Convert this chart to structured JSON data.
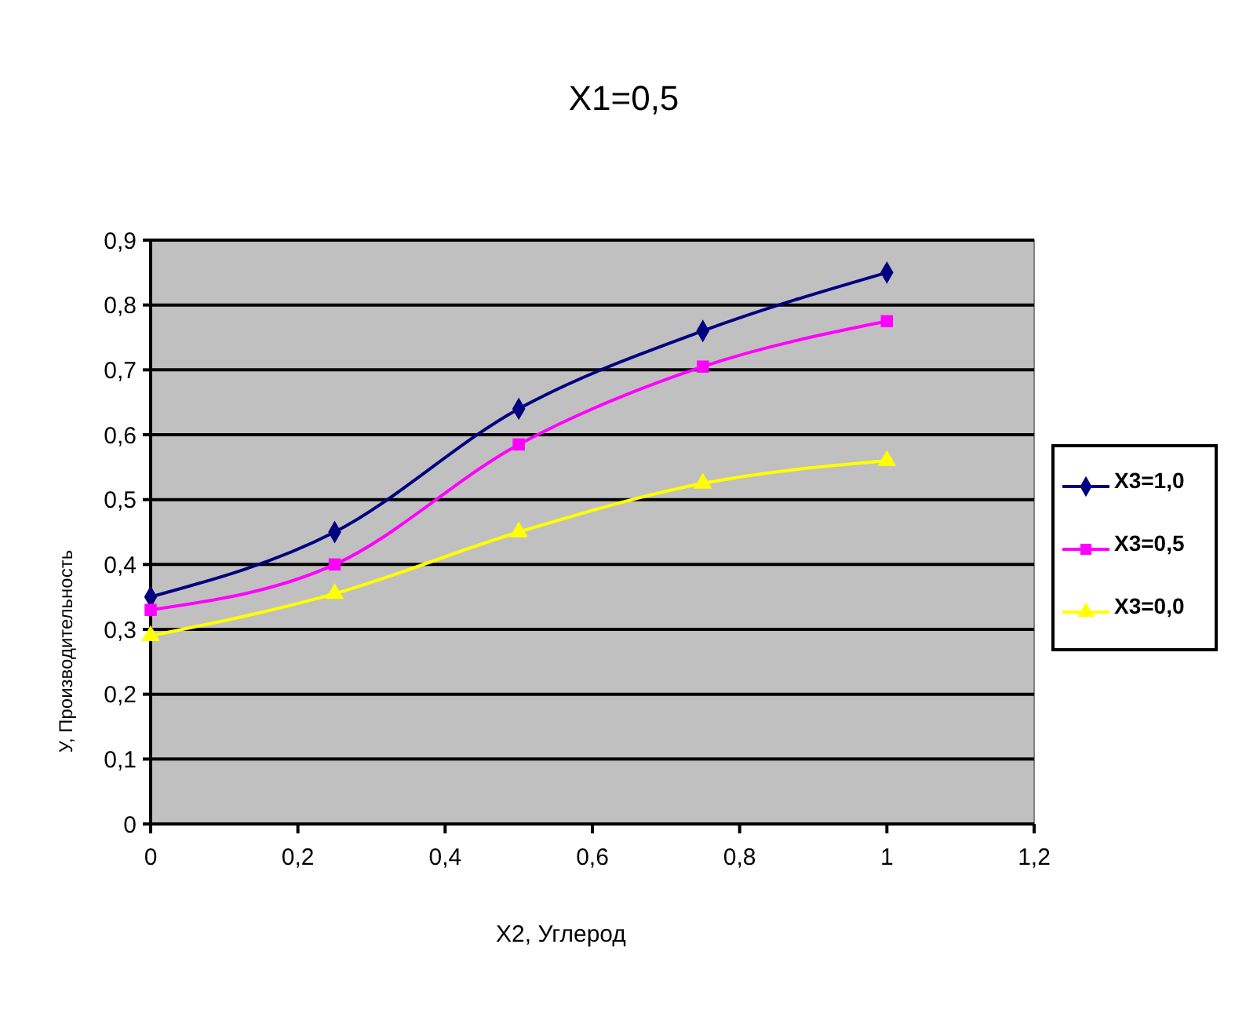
{
  "chart_data": {
    "type": "line",
    "title": "X1=0,5",
    "xlabel": "X2, Углерод",
    "ylabel": "У, Производительность",
    "x": [
      0,
      0.25,
      0.5,
      0.75,
      1
    ],
    "series": [
      {
        "name": "X3=1,0",
        "color": "#000080",
        "values": [
          0.35,
          0.45,
          0.64,
          0.76,
          0.85
        ],
        "marker": "diamond"
      },
      {
        "name": "X3=0,5",
        "color": "#ff00ff",
        "values": [
          0.33,
          0.4,
          0.585,
          0.705,
          0.775
        ],
        "marker": "square"
      },
      {
        "name": "X3=0,0",
        "color": "#ffff00",
        "values": [
          0.29,
          0.355,
          0.45,
          0.525,
          0.56
        ],
        "marker": "triangle"
      }
    ],
    "xlim": [
      0,
      1.2
    ],
    "xticks": [
      {
        "value": 0,
        "label": "0"
      },
      {
        "value": 0.2,
        "label": "0,2"
      },
      {
        "value": 0.4,
        "label": "0,4"
      },
      {
        "value": 0.6,
        "label": "0,6"
      },
      {
        "value": 0.8,
        "label": "0,8"
      },
      {
        "value": 1,
        "label": "1"
      },
      {
        "value": 1.2,
        "label": "1,2"
      }
    ],
    "ylim": [
      0,
      0.9
    ],
    "yticks": [
      {
        "value": 0,
        "label": "0"
      },
      {
        "value": 0.1,
        "label": "0,1"
      },
      {
        "value": 0.2,
        "label": "0,2"
      },
      {
        "value": 0.3,
        "label": "0,3"
      },
      {
        "value": 0.4,
        "label": "0,4"
      },
      {
        "value": 0.5,
        "label": "0,5"
      },
      {
        "value": 0.6,
        "label": "0,6"
      },
      {
        "value": 0.7,
        "label": "0,7"
      },
      {
        "value": 0.8,
        "label": "0,8"
      },
      {
        "value": 0.9,
        "label": "0,9"
      }
    ],
    "grid": "y",
    "legend": "right",
    "line_style": "solid"
  }
}
